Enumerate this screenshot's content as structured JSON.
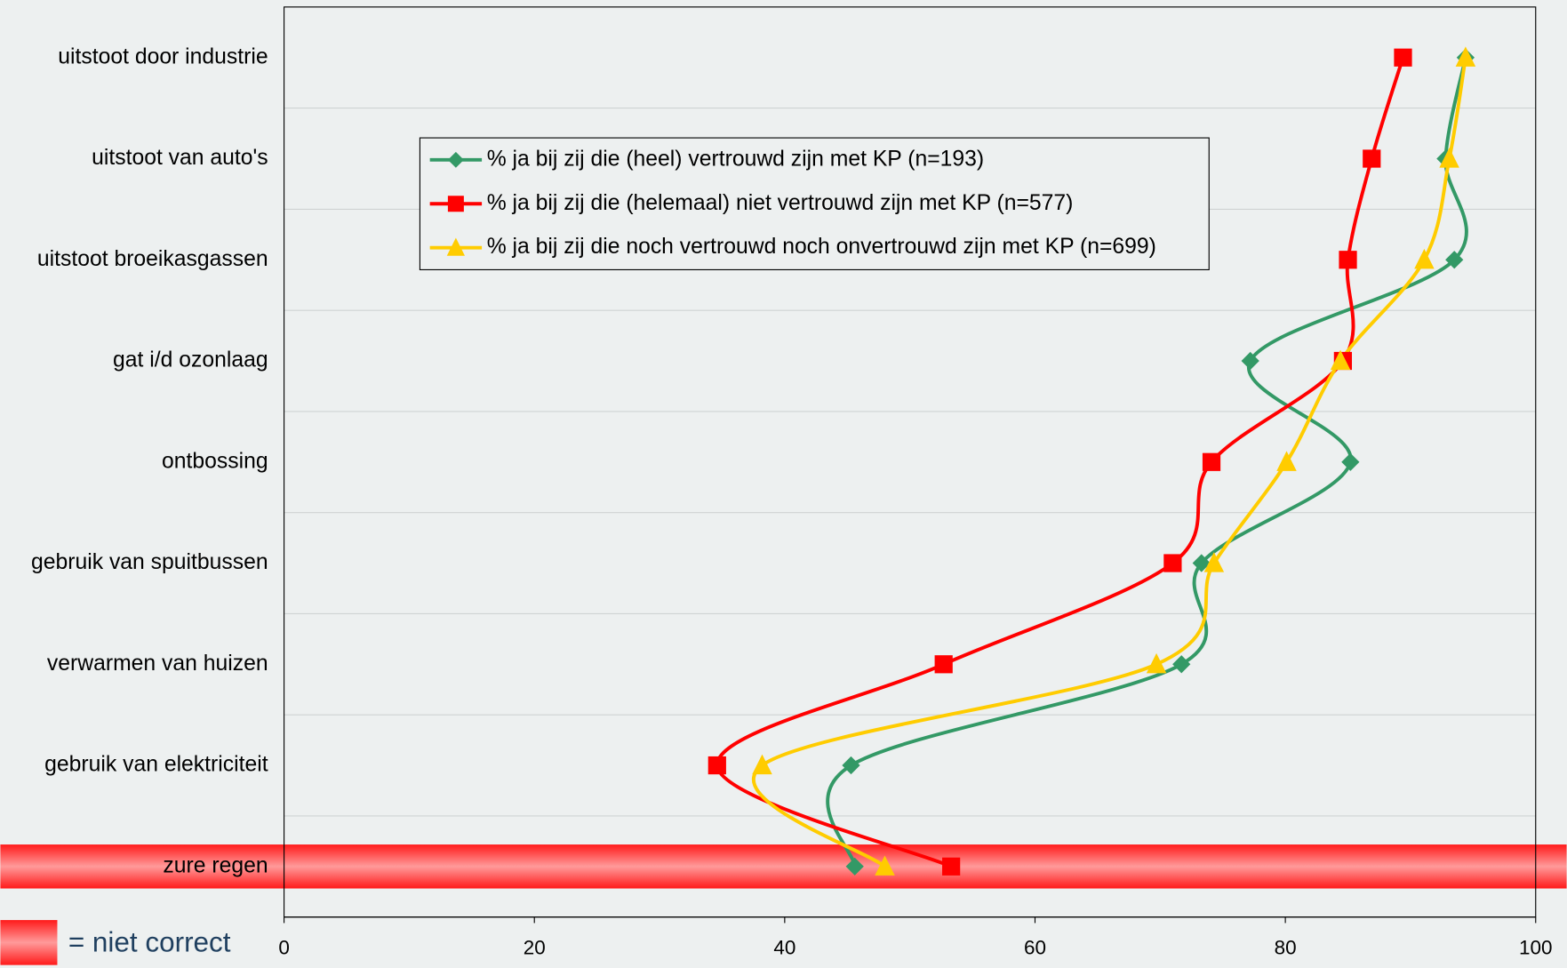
{
  "chart_data": {
    "type": "line",
    "orientation": "horizontal",
    "smooth": true,
    "categories": [
      "uitstoot door industrie",
      "uitstoot van auto's",
      "uitstoot broeikasgassen",
      "gat i/d ozonlaag",
      "ontbossing",
      "gebruik van spuitbussen",
      "verwarmen van huizen",
      "gebruik van elektriciteit",
      "zure regen"
    ],
    "series": [
      {
        "name": "% ja bij zij die (heel) vertrouwd zijn met KP (n=193)",
        "color": "#339966",
        "marker": "diamond",
        "values": [
          94.4,
          92.8,
          93.5,
          77.2,
          85.2,
          73.3,
          71.7,
          45.3,
          45.6
        ]
      },
      {
        "name": "% ja bij zij die (helemaal) niet vertrouwd zijn met KP (n=577)",
        "color": "#ff0000",
        "marker": "square",
        "values": [
          89.4,
          86.9,
          85.0,
          84.6,
          74.1,
          71.0,
          52.7,
          34.6,
          53.3
        ]
      },
      {
        "name": "% ja bij zij die noch vertrouwd noch onvertrouwd zijn met KP (n=699)",
        "color": "#ffcc00",
        "marker": "triangle",
        "values": [
          94.4,
          93.1,
          91.1,
          84.4,
          80.1,
          74.3,
          69.7,
          38.2,
          48.0
        ]
      }
    ],
    "xlim": [
      0,
      100
    ],
    "xticks": [
      0,
      20,
      40,
      60,
      80,
      100
    ],
    "legend": "top-center",
    "highlight": {
      "categories": [
        "zure regen"
      ],
      "label": "= niet correct",
      "color": "#ff0000"
    }
  }
}
